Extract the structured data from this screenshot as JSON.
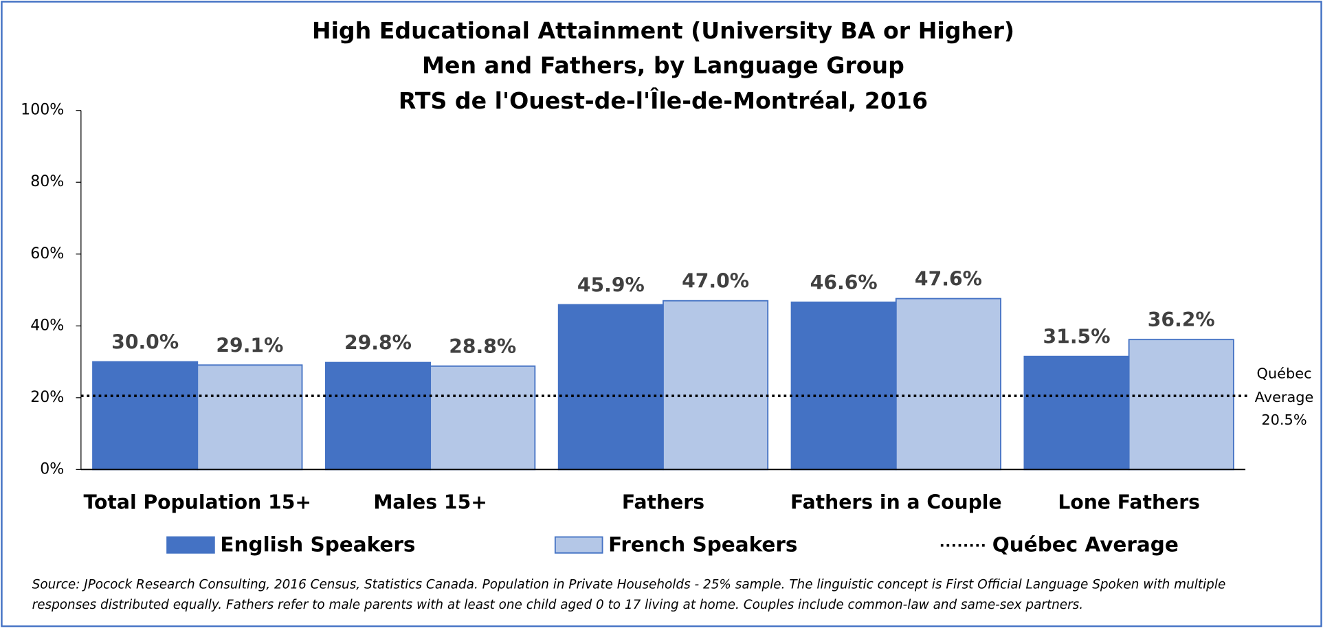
{
  "chart_data": {
    "type": "bar",
    "title": [
      "High Educational Attainment (University BA or Higher)",
      "Men and Fathers, by Language Group",
      "RTS de l'Ouest-de-l'Île-de-Montréal, 2016"
    ],
    "categories": [
      "Total Population 15+",
      "Males 15+",
      "Fathers",
      "Fathers in a Couple",
      "Lone Fathers"
    ],
    "series": [
      {
        "name": "English Speakers",
        "color": "#4472c4",
        "values": [
          30.0,
          29.8,
          45.9,
          46.6,
          31.5
        ],
        "value_labels": [
          "30.0%",
          "29.8%",
          "45.9%",
          "46.6%",
          "31.5%"
        ]
      },
      {
        "name": "French Speakers",
        "color": "#b4c7e7",
        "values": [
          29.1,
          28.8,
          47.0,
          47.6,
          36.2
        ],
        "value_labels": [
          "29.1%",
          "28.8%",
          "47.0%",
          "47.6%",
          "36.2%"
        ]
      }
    ],
    "reference_line": {
      "name": "Québec Average",
      "value": 20.5,
      "value_label": "20.5%",
      "annotation": [
        "Québec",
        "Average"
      ]
    },
    "ylim": [
      0,
      100
    ],
    "yticks": [
      {
        "value": 0,
        "label": "0%"
      },
      {
        "value": 20,
        "label": "20%"
      },
      {
        "value": 40,
        "label": "40%"
      },
      {
        "value": 60,
        "label": "60%"
      },
      {
        "value": 80,
        "label": "80%"
      },
      {
        "value": 100,
        "label": "100%"
      }
    ],
    "legend": "bottom",
    "source": [
      "Source: JPocock Research Consulting, 2016 Census, Statistics Canada. Population in Private Households - 25% sample. The linguistic concept is First Official Language Spoken with multiple",
      "responses distributed equally. Fathers refer to male parents with at least one child aged 0 to 17 living at home. Couples include common-law and same-sex partners."
    ]
  }
}
